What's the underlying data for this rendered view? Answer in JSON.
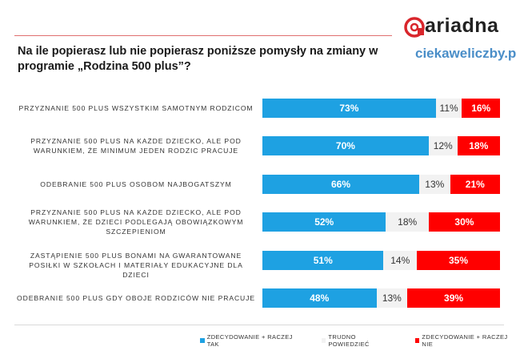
{
  "header": {
    "title_line1": "Na ile popierasz lub nie popierasz poniższe pomysły na zmiany w",
    "title_line2": "programie „Rodzina 500 plus”?",
    "brand": "ariadna",
    "site": "ciekaweliczby.pl"
  },
  "colors": {
    "yes": "#1ea1e2",
    "hard": "#f2f2f2",
    "no": "#ff0000"
  },
  "chart_data": {
    "type": "bar",
    "stacked": true,
    "orientation": "horizontal",
    "title": "Na ile popierasz lub nie popierasz poniższe pomysły na zmiany w programie „Rodzina 500 plus”?",
    "categories": [
      "PRZYZNANIE 500 PLUS WSZYSTKIM SAMOTNYM RODZICOM",
      "PRZYZNANIE 500 PLUS NA KAŻDE DZIECKO, ALE POD WARUNKIEM, ŻE MINIMUM JEDEN RODZIC PRACUJE",
      "ODEBRANIE 500 PLUS OSOBOM NAJBOGATSZYM",
      "PRZYZNANIE 500 PLUS NA KAŻDE DZIECKO, ALE POD WARUNKIEM, ŻE DZIECI PODLEGAJĄ OBOWIĄZKOWYM SZCZEPIENIOM",
      "ZASTĄPIENIE 500 PLUS BONAMI NA GWARANTOWANE POSIŁKI W SZKOŁACH I MATERIAŁY EDUKACYJNE DLA DZIECI",
      "ODEBRANIE 500 PLUS  GDY  OBOJE RODZICÓW NIE PRACUJE"
    ],
    "series": [
      {
        "name": "ZDECYDOWANIE + RACZEJ TAK",
        "values": [
          73,
          70,
          66,
          52,
          51,
          48
        ],
        "labels": [
          "73%",
          "70%",
          "66%",
          "52%",
          "51%",
          "48%"
        ]
      },
      {
        "name": "TRUDNO POWIEDZIEĆ",
        "values": [
          11,
          12,
          13,
          18,
          14,
          13
        ],
        "labels": [
          "11%",
          "12%",
          "13%",
          "18%",
          "14%",
          "13%"
        ]
      },
      {
        "name": "ZDECYDOWANIE + RACZEJ NIE",
        "values": [
          16,
          18,
          21,
          30,
          35,
          39
        ],
        "labels": [
          "16%",
          "18%",
          "21%",
          "30%",
          "35%",
          "39%"
        ]
      }
    ],
    "xlim": [
      0,
      100
    ],
    "grid": false,
    "legend": "bottom"
  }
}
